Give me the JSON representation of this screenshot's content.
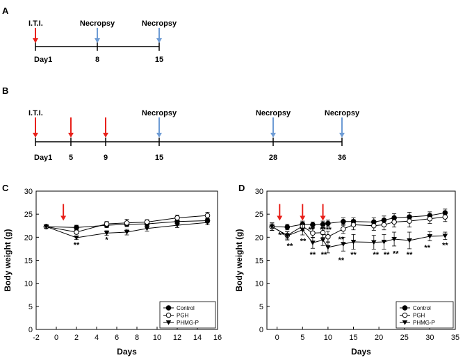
{
  "colors": {
    "arrow_red": "#e8201a",
    "arrow_blue": "#6d9bd4",
    "ink": "#000000"
  },
  "timelines": [
    {
      "panel": "A",
      "events": [
        {
          "day": 1,
          "label": "I.T.I.",
          "arrow": "red"
        },
        {
          "day": 8,
          "label": "Necropsy",
          "arrow": "blue"
        },
        {
          "day": 15,
          "label": "Necropsy",
          "arrow": "blue"
        }
      ],
      "ticks": [
        "Day1",
        "8",
        "15"
      ]
    },
    {
      "panel": "B",
      "events": [
        {
          "day": 1,
          "label": "I.T.I.",
          "arrow": "red"
        },
        {
          "day": 5,
          "label": "",
          "arrow": "red"
        },
        {
          "day": 9,
          "label": "",
          "arrow": "red"
        },
        {
          "day": 15,
          "label": "Necropsy",
          "arrow": "blue"
        },
        {
          "day": 28,
          "label": "Necropsy",
          "arrow": "blue"
        },
        {
          "day": 36,
          "label": "Necropsy",
          "arrow": "blue"
        }
      ],
      "ticks": [
        "Day1",
        "5",
        "9",
        "15",
        "28",
        "36"
      ]
    }
  ],
  "chart_data": [
    {
      "panel": "C",
      "type": "line",
      "xlabel": "Days",
      "ylabel": "Body weight (g)",
      "xlim": [
        -2,
        16
      ],
      "ylim": [
        0,
        30
      ],
      "xticks": [
        "-2",
        "0",
        "2",
        "4",
        "6",
        "8",
        "10",
        "12",
        "14",
        "16"
      ],
      "yticks": [
        "0",
        "5",
        "10",
        "15",
        "20",
        "25",
        "30"
      ],
      "legend_position": "bottom-right",
      "treatment_arrows_days": [
        0.7
      ],
      "series": [
        {
          "name": "Control",
          "marker": "filled-circle",
          "x": [
            -1,
            2,
            5,
            7,
            9,
            12,
            15
          ],
          "y": [
            22.3,
            22.1,
            22.6,
            22.8,
            22.9,
            23.4,
            23.6
          ],
          "err": [
            0.4,
            0.5,
            0.5,
            0.5,
            0.5,
            0.5,
            0.5
          ]
        },
        {
          "name": "PGH",
          "marker": "open-circle",
          "x": [
            -1,
            2,
            5,
            7,
            9,
            12,
            15
          ],
          "y": [
            22.3,
            21.1,
            22.9,
            23.1,
            23.3,
            24.2,
            24.7
          ],
          "err": [
            0.4,
            0.4,
            0.5,
            0.8,
            0.5,
            0.6,
            0.7
          ]
        },
        {
          "name": "PHMG-P",
          "marker": "filled-triangle-down",
          "x": [
            -1,
            2,
            5,
            7,
            9,
            12,
            15
          ],
          "y": [
            22.3,
            19.9,
            20.9,
            21.1,
            21.9,
            22.6,
            23.2
          ],
          "err": [
            0.4,
            0.4,
            0.5,
            0.6,
            0.6,
            0.5,
            0.5
          ]
        }
      ],
      "annotations": [
        {
          "x": 2,
          "y": 17.8,
          "text": "**"
        },
        {
          "x": 5,
          "y": 18.9,
          "text": "*"
        }
      ]
    },
    {
      "panel": "D",
      "type": "line",
      "xlabel": "Days",
      "ylabel": "Body weight (g)",
      "xlim": [
        -2,
        35
      ],
      "ylim": [
        0,
        30
      ],
      "xticks": [
        "0",
        "5",
        "10",
        "15",
        "20",
        "25",
        "30",
        "35"
      ],
      "yticks": [
        "0",
        "5",
        "10",
        "15",
        "20",
        "25",
        "30"
      ],
      "legend_position": "bottom-right",
      "treatment_arrows_days": [
        0.5,
        5,
        9
      ],
      "series": [
        {
          "name": "Control",
          "marker": "filled-circle",
          "x": [
            -1,
            2,
            5,
            7,
            9,
            10,
            13,
            15,
            19,
            21,
            23,
            26,
            30,
            33
          ],
          "y": [
            22.3,
            22.2,
            22.8,
            22.7,
            22.8,
            23.0,
            23.4,
            23.4,
            23.3,
            23.7,
            24.2,
            24.4,
            24.7,
            25.3
          ],
          "err": [
            0.8,
            0.6,
            0.7,
            0.6,
            0.7,
            0.7,
            0.8,
            0.8,
            0.9,
            0.9,
            0.9,
            1.0,
            0.8,
            0.8
          ]
        },
        {
          "name": "PGH",
          "marker": "open-circle",
          "x": [
            -1,
            2,
            5,
            7,
            9,
            10,
            13,
            15,
            19,
            21,
            23,
            26,
            30,
            33
          ],
          "y": [
            22.3,
            20.4,
            22.4,
            20.9,
            21.0,
            20.1,
            21.8,
            22.7,
            22.5,
            22.7,
            23.3,
            23.5,
            24.0,
            24.4
          ],
          "err": [
            0.8,
            0.8,
            0.9,
            1.0,
            1.0,
            1.2,
            1.0,
            1.1,
            1.0,
            1.1,
            1.1,
            1.3,
            1.0,
            1.0
          ]
        },
        {
          "name": "PHMG-P",
          "marker": "filled-triangle-down",
          "x": [
            -1,
            2,
            5,
            7,
            9,
            10,
            13,
            15,
            19,
            21,
            23,
            26,
            30,
            33
          ],
          "y": [
            22.3,
            20.3,
            21.6,
            18.8,
            19.4,
            17.8,
            18.5,
            19.0,
            18.9,
            19.0,
            19.6,
            19.3,
            20.2,
            20.3
          ],
          "err": [
            0.8,
            0.9,
            1.1,
            1.2,
            1.2,
            1.2,
            1.5,
            1.6,
            1.5,
            1.6,
            1.5,
            1.8,
            1.0,
            0.8
          ]
        }
      ],
      "annotations": [
        {
          "x": 0.8,
          "y": 20.0,
          "text": "**"
        },
        {
          "x": 2.5,
          "y": 17.6,
          "text": "**"
        },
        {
          "x": 5.1,
          "y": 18.6,
          "text": "**"
        },
        {
          "x": 6.7,
          "y": 21.1,
          "text": "**"
        },
        {
          "x": 7.0,
          "y": 15.7,
          "text": "**"
        },
        {
          "x": 9.3,
          "y": 21.1,
          "text": "***"
        },
        {
          "x": 10.4,
          "y": 21.1,
          "text": "*"
        },
        {
          "x": 9.2,
          "y": 15.7,
          "text": "**"
        },
        {
          "x": 12.6,
          "y": 19.0,
          "text": "**"
        },
        {
          "x": 12.6,
          "y": 14.5,
          "text": "**"
        },
        {
          "x": 15.0,
          "y": 15.7,
          "text": "**"
        },
        {
          "x": 19.4,
          "y": 15.7,
          "text": "**"
        },
        {
          "x": 21.5,
          "y": 15.7,
          "text": "**"
        },
        {
          "x": 23.3,
          "y": 15.9,
          "text": "**"
        },
        {
          "x": 26.0,
          "y": 15.7,
          "text": "**"
        },
        {
          "x": 29.5,
          "y": 17.2,
          "text": "**"
        },
        {
          "x": 33.0,
          "y": 17.7,
          "text": "**"
        }
      ]
    }
  ]
}
